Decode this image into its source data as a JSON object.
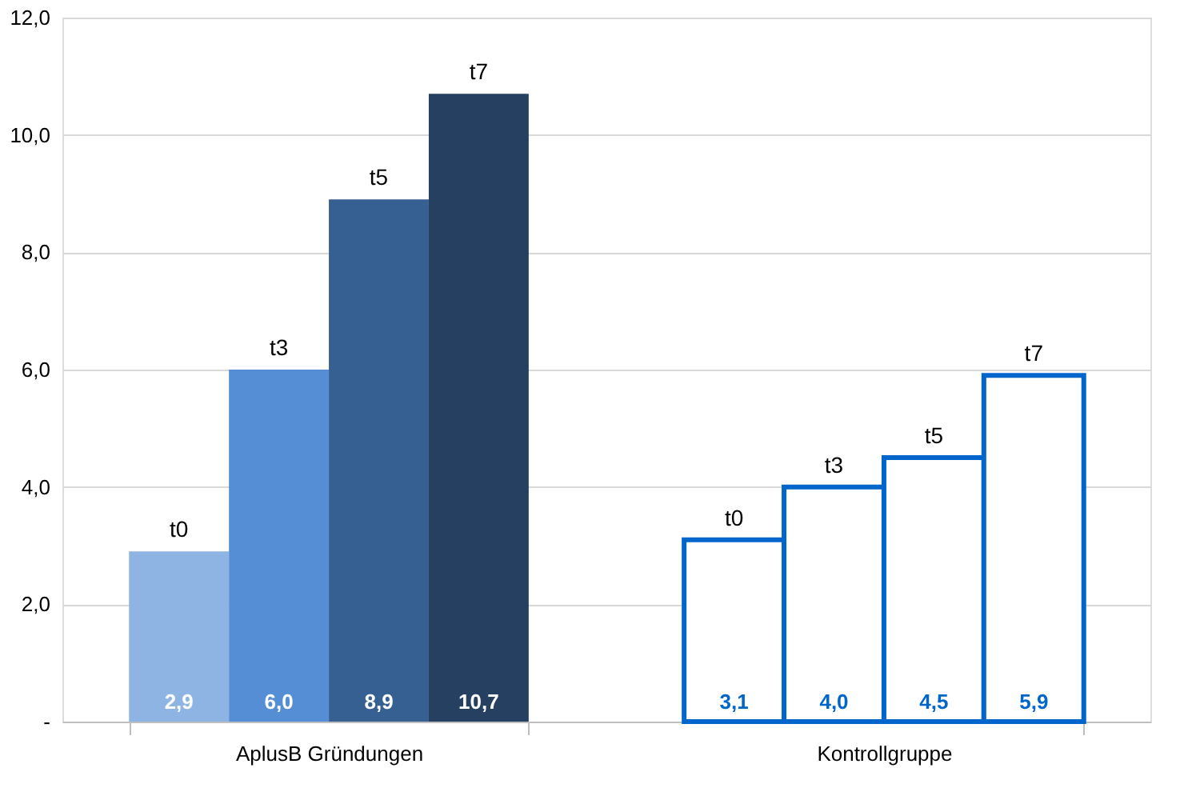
{
  "chart_data": {
    "type": "bar",
    "categories": [
      "AplusB Gründungen",
      "Kontrollgruppe"
    ],
    "series": [
      {
        "name": "t0",
        "colors": [
          "#8eb4e3",
          "#ffffff"
        ],
        "values": [
          2.9,
          3.1
        ],
        "value_labels": [
          "2,9",
          "3,1"
        ]
      },
      {
        "name": "t3",
        "colors": [
          "#558ed5",
          "#ffffff"
        ],
        "values": [
          6.0,
          4.0
        ],
        "value_labels": [
          "6,0",
          "4,0"
        ]
      },
      {
        "name": "t5",
        "colors": [
          "#376092",
          "#ffffff"
        ],
        "values": [
          8.9,
          4.5
        ],
        "value_labels": [
          "8,9",
          "4,5"
        ]
      },
      {
        "name": "t7",
        "colors": [
          "#254061",
          "#ffffff"
        ],
        "values": [
          10.7,
          5.9
        ],
        "value_labels": [
          "10,7",
          "5,9"
        ]
      }
    ],
    "ylim": [
      0,
      12
    ],
    "yticks": [
      {
        "value": 0,
        "label": "-"
      },
      {
        "value": 2,
        "label": "2,0"
      },
      {
        "value": 4,
        "label": "4,0"
      },
      {
        "value": 6,
        "label": "6,0"
      },
      {
        "value": 8,
        "label": "8,0"
      },
      {
        "value": 10,
        "label": "10,0"
      },
      {
        "value": 12,
        "label": "12,0"
      }
    ],
    "grid": "y"
  }
}
